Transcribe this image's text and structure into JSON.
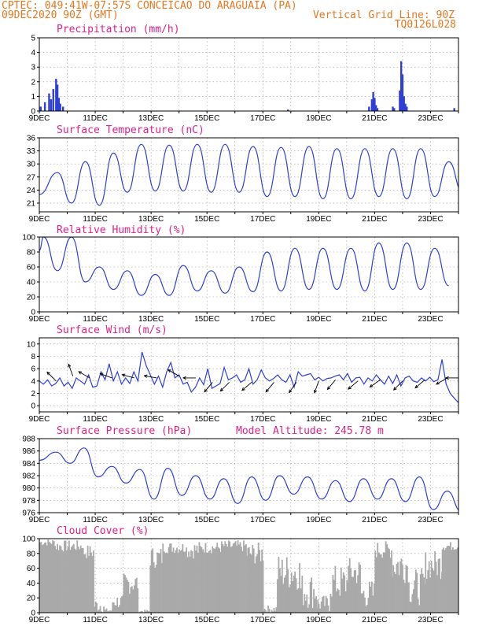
{
  "header": {
    "line1": "CPTEC:   049:41W-07:57S  CONCEICAO DO ARAGUAIA (PA)",
    "line2_left": "09DEC2020 90Z (GMT)",
    "line2_right": "Vertical Grid Line: 90Z",
    "line3_right": "TQ0126L028"
  },
  "colors": {
    "header": "#e8771e",
    "panel_title": "#e0208a",
    "series": "#2f3fd6",
    "cloud": "#a9a9a9",
    "grid": "#999999"
  },
  "x_axis": {
    "labels": [
      "9DEC",
      "11DEC",
      "13DEC",
      "15DEC",
      "17DEC",
      "19DEC",
      "21DEC",
      "23DEC"
    ],
    "days_shown": 15
  },
  "chart_data": [
    {
      "id": "precip",
      "type": "bar",
      "title": "Precipitation (mm/h)",
      "ylim": [
        0,
        5
      ],
      "yticks": [
        "0",
        "1",
        "2",
        "3",
        "4",
        "5"
      ],
      "events": [
        {
          "day": 9.05,
          "value": 0.3
        },
        {
          "day": 9.2,
          "value": 0.6
        },
        {
          "day": 9.35,
          "value": 1.2
        },
        {
          "day": 9.42,
          "value": 0.8
        },
        {
          "day": 9.5,
          "value": 1.5
        },
        {
          "day": 9.6,
          "value": 2.2
        },
        {
          "day": 9.65,
          "value": 1.8
        },
        {
          "day": 9.7,
          "value": 0.9
        },
        {
          "day": 9.75,
          "value": 0.5
        },
        {
          "day": 9.85,
          "value": 0.3
        },
        {
          "day": 17.9,
          "value": 0.1
        },
        {
          "day": 20.8,
          "value": 0.3
        },
        {
          "day": 20.9,
          "value": 0.8
        },
        {
          "day": 20.95,
          "value": 1.3
        },
        {
          "day": 21.0,
          "value": 0.9
        },
        {
          "day": 21.05,
          "value": 0.4
        },
        {
          "day": 21.1,
          "value": 0.2
        },
        {
          "day": 21.65,
          "value": 0.3
        },
        {
          "day": 21.7,
          "value": 0.2
        },
        {
          "day": 21.9,
          "value": 1.4
        },
        {
          "day": 21.95,
          "value": 3.4
        },
        {
          "day": 22.0,
          "value": 2.5
        },
        {
          "day": 22.05,
          "value": 1.0
        },
        {
          "day": 22.1,
          "value": 0.5
        },
        {
          "day": 22.15,
          "value": 0.3
        },
        {
          "day": 23.85,
          "value": 0.2
        }
      ]
    },
    {
      "id": "temp",
      "type": "line",
      "title": "Surface Temperature (nC)",
      "ylim": [
        19,
        36
      ],
      "yticks": [
        "21",
        "24",
        "27",
        "30",
        "33",
        "36"
      ],
      "daily": [
        {
          "min": 21.0,
          "max": 28.0
        },
        {
          "min": 20.5,
          "max": 30.5
        },
        {
          "min": 23.5,
          "max": 32.5
        },
        {
          "min": 23.8,
          "max": 34.5
        },
        {
          "min": 23.8,
          "max": 34.3
        },
        {
          "min": 23.5,
          "max": 34.5
        },
        {
          "min": 23.5,
          "max": 34.5
        },
        {
          "min": 22.5,
          "max": 34.0
        },
        {
          "min": 22.5,
          "max": 33.8
        },
        {
          "min": 22.0,
          "max": 34.0
        },
        {
          "min": 22.0,
          "max": 33.5
        },
        {
          "min": 22.5,
          "max": 33.5
        },
        {
          "min": 22.0,
          "max": 33.5
        },
        {
          "min": 22.5,
          "max": 33.5
        },
        {
          "min": 23.5,
          "max": 30.5
        }
      ],
      "start_value": 23.0
    },
    {
      "id": "rh",
      "type": "line",
      "title": "Relative Humidity (%)",
      "ylim": [
        0,
        100
      ],
      "yticks": [
        "0",
        "20",
        "40",
        "60",
        "80",
        "100"
      ],
      "daily": [
        {
          "min": 55,
          "max": 100
        },
        {
          "min": 40,
          "max": 100
        },
        {
          "min": 30,
          "max": 60
        },
        {
          "min": 22,
          "max": 55
        },
        {
          "min": 22,
          "max": 50
        },
        {
          "min": 28,
          "max": 62
        },
        {
          "min": 25,
          "max": 55
        },
        {
          "min": 27,
          "max": 60
        },
        {
          "min": 28,
          "max": 80
        },
        {
          "min": 30,
          "max": 85
        },
        {
          "min": 30,
          "max": 85
        },
        {
          "min": 28,
          "max": 85
        },
        {
          "min": 30,
          "max": 92
        },
        {
          "min": 30,
          "max": 92
        },
        {
          "min": 35,
          "max": 85
        }
      ],
      "start_value": 82
    },
    {
      "id": "wind",
      "type": "line",
      "title": "Surface Wind (m/s)",
      "ylim": [
        -1,
        11
      ],
      "yticks": [
        "0",
        "2",
        "4",
        "6",
        "8",
        "10"
      ],
      "values": [
        4.0,
        3.5,
        4.2,
        3.2,
        3.6,
        4.5,
        3.2,
        3.8,
        2.8,
        4.5,
        4.0,
        3.5,
        5.0,
        3.0,
        3.2,
        5.5,
        4.2,
        6.8,
        4.0,
        5.5,
        3.5,
        4.5,
        3.6,
        5.5,
        4.0,
        8.7,
        6.5,
        5.0,
        3.5,
        4.8,
        3.0,
        5.5,
        7.0,
        4.5,
        5.0,
        3.5,
        3.8,
        2.2,
        3.0,
        4.5,
        3.4,
        6.0,
        2.8,
        3.2,
        3.6,
        6.2,
        4.2,
        4.5,
        5.0,
        3.8,
        4.2,
        6.0,
        3.5,
        4.2,
        5.8,
        4.5,
        4.0,
        4.4,
        5.0,
        4.2,
        3.8,
        5.0,
        3.0,
        5.5,
        4.8,
        5.0,
        5.2,
        4.2,
        4.6,
        4.0,
        4.4,
        4.5,
        4.8,
        5.0,
        4.2,
        5.2,
        3.8,
        4.5,
        4.6,
        3.5,
        4.5,
        4.0,
        5.0,
        4.2,
        3.5,
        4.8,
        3.6,
        5.0,
        3.2,
        4.5,
        4.8,
        4.0,
        3.8,
        4.5,
        4.0,
        4.6,
        3.9,
        4.2,
        7.5,
        3.5,
        2.0,
        1.2,
        0.5
      ],
      "barbs": [
        {
          "day": 9.6,
          "speed": 4.0,
          "dir": 315
        },
        {
          "day": 10.2,
          "speed": 4.8,
          "dir": 340
        },
        {
          "day": 10.8,
          "speed": 4.5,
          "dir": 300
        },
        {
          "day": 11.6,
          "speed": 4.5,
          "dir": 290
        },
        {
          "day": 12.4,
          "speed": 4.5,
          "dir": 285
        },
        {
          "day": 13.2,
          "speed": 4.5,
          "dir": 280
        },
        {
          "day": 14.0,
          "speed": 4.8,
          "dir": 300
        },
        {
          "day": 14.6,
          "speed": 4.5,
          "dir": 270
        },
        {
          "day": 15.2,
          "speed": 3.8,
          "dir": 220
        },
        {
          "day": 15.8,
          "speed": 3.8,
          "dir": 225
        },
        {
          "day": 16.6,
          "speed": 3.8,
          "dir": 230
        },
        {
          "day": 17.4,
          "speed": 3.8,
          "dir": 220
        },
        {
          "day": 18.2,
          "speed": 3.8,
          "dir": 215
        },
        {
          "day": 19.0,
          "speed": 4.0,
          "dir": 200
        },
        {
          "day": 19.6,
          "speed": 4.2,
          "dir": 220
        },
        {
          "day": 20.4,
          "speed": 4.0,
          "dir": 230
        },
        {
          "day": 21.2,
          "speed": 4.2,
          "dir": 235
        },
        {
          "day": 22.0,
          "speed": 4.0,
          "dir": 225
        },
        {
          "day": 22.8,
          "speed": 4.2,
          "dir": 230
        },
        {
          "day": 23.6,
          "speed": 4.5,
          "dir": 240
        },
        {
          "day": 24.0,
          "speed": 4.5,
          "dir": 270
        }
      ]
    },
    {
      "id": "pressure",
      "type": "line",
      "title": "Surface Pressure (hPa)",
      "subtitle": "Model Altitude: 245.78 m",
      "ylim": [
        976,
        988
      ],
      "yticks": [
        "976",
        "978",
        "980",
        "982",
        "984",
        "986",
        "988"
      ],
      "daily": [
        {
          "min": 984.0,
          "max": 985.8
        },
        {
          "min": 981.8,
          "max": 986.5
        },
        {
          "min": 980.8,
          "max": 983.5
        },
        {
          "min": 978.2,
          "max": 983.0
        },
        {
          "min": 978.8,
          "max": 983.2
        },
        {
          "min": 978.2,
          "max": 982.0
        },
        {
          "min": 977.5,
          "max": 981.5
        },
        {
          "min": 978.0,
          "max": 981.8
        },
        {
          "min": 979.0,
          "max": 982.0
        },
        {
          "min": 978.2,
          "max": 981.8
        },
        {
          "min": 977.8,
          "max": 981.2
        },
        {
          "min": 978.2,
          "max": 981.5
        },
        {
          "min": 977.8,
          "max": 981.5
        },
        {
          "min": 976.5,
          "max": 981.8
        },
        {
          "min": 976.2,
          "max": 979.5
        }
      ],
      "start_value": 984.5
    },
    {
      "id": "cloud",
      "type": "area",
      "title": "Cloud Cover (%)",
      "ylim": [
        0,
        100
      ],
      "yticks": [
        "0",
        "20",
        "40",
        "60",
        "80",
        "100"
      ],
      "segments": [
        {
          "from": 9.0,
          "to": 9.5,
          "base": 95,
          "var": 5
        },
        {
          "from": 9.5,
          "to": 10.5,
          "base": 90,
          "var": 8
        },
        {
          "from": 10.5,
          "to": 10.95,
          "base": 82,
          "var": 10
        },
        {
          "from": 10.95,
          "to": 11.3,
          "base": 10,
          "var": 10
        },
        {
          "from": 11.3,
          "to": 11.6,
          "base": 3,
          "var": 3
        },
        {
          "from": 11.6,
          "to": 12.0,
          "base": 15,
          "var": 10
        },
        {
          "from": 12.0,
          "to": 12.5,
          "base": 40,
          "var": 15
        },
        {
          "from": 12.5,
          "to": 12.95,
          "base": 2,
          "var": 2
        },
        {
          "from": 12.95,
          "to": 13.4,
          "base": 75,
          "var": 15
        },
        {
          "from": 13.4,
          "to": 14.2,
          "base": 88,
          "var": 8
        },
        {
          "from": 14.2,
          "to": 14.8,
          "base": 85,
          "var": 12
        },
        {
          "from": 14.8,
          "to": 15.5,
          "base": 88,
          "var": 8
        },
        {
          "from": 15.5,
          "to": 16.4,
          "base": 90,
          "var": 8
        },
        {
          "from": 16.4,
          "to": 17.0,
          "base": 80,
          "var": 15
        },
        {
          "from": 17.0,
          "to": 17.5,
          "base": 5,
          "var": 5
        },
        {
          "from": 17.5,
          "to": 18.3,
          "base": 55,
          "var": 25
        },
        {
          "from": 18.3,
          "to": 18.9,
          "base": 30,
          "var": 25
        },
        {
          "from": 18.9,
          "to": 19.4,
          "base": 12,
          "var": 12
        },
        {
          "from": 19.4,
          "to": 20.0,
          "base": 40,
          "var": 25
        },
        {
          "from": 20.0,
          "to": 20.5,
          "base": 55,
          "var": 20
        },
        {
          "from": 20.5,
          "to": 21.0,
          "base": 25,
          "var": 20
        },
        {
          "from": 21.0,
          "to": 21.6,
          "base": 85,
          "var": 12
        },
        {
          "from": 21.6,
          "to": 22.2,
          "base": 65,
          "var": 25
        },
        {
          "from": 22.2,
          "to": 22.8,
          "base": 35,
          "var": 25
        },
        {
          "from": 22.8,
          "to": 23.4,
          "base": 65,
          "var": 20
        },
        {
          "from": 23.4,
          "to": 24.0,
          "base": 90,
          "var": 6
        }
      ]
    }
  ]
}
